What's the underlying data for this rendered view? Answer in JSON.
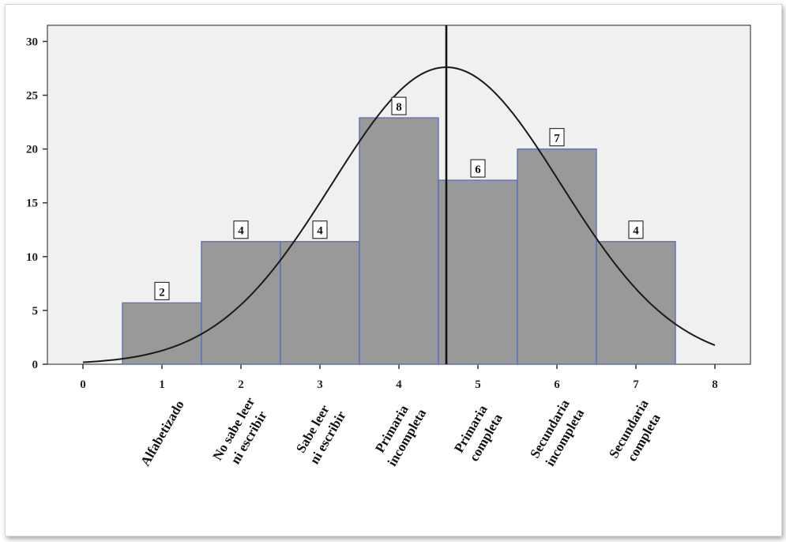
{
  "chart_data": {
    "type": "bar",
    "x": [
      1,
      2,
      3,
      4,
      5,
      6,
      7
    ],
    "values": [
      5.7,
      11.4,
      11.4,
      22.9,
      17.1,
      20.0,
      11.4
    ],
    "counts": [
      "2",
      "4",
      "4",
      "8",
      "6",
      "7",
      "4"
    ],
    "categories": [
      [
        "Alfabetizado"
      ],
      [
        "No sabe leer",
        "ni escribir"
      ],
      [
        "Sabe leer",
        "ni escribir"
      ],
      [
        "Primaria",
        "incompleta"
      ],
      [
        "Primaria",
        "completa"
      ],
      [
        "Secundaria",
        "incompleta"
      ],
      [
        "Secundaria",
        "completa"
      ]
    ],
    "xlim": [
      -0.45,
      8.45
    ],
    "ylim": [
      0,
      31.5
    ],
    "x_ticks": [
      "0",
      "1",
      "2",
      "3",
      "4",
      "5",
      "6",
      "7",
      "8"
    ],
    "y_ticks": [
      "0",
      "5",
      "10",
      "15",
      "20",
      "25",
      "30"
    ],
    "mean_line_x": 4.6,
    "normal_curve": {
      "mean": 4.6,
      "sd": 1.45,
      "peak": 27.6
    },
    "colors": {
      "bar_fill": "#999999",
      "bar_edge": "#6170b5",
      "plot_bg": "#f0f0f0",
      "curve": "#1a1a1a",
      "mean_line": "#111111"
    },
    "title": "",
    "xlabel": "",
    "ylabel": "",
    "grid": false,
    "legend": "none"
  }
}
